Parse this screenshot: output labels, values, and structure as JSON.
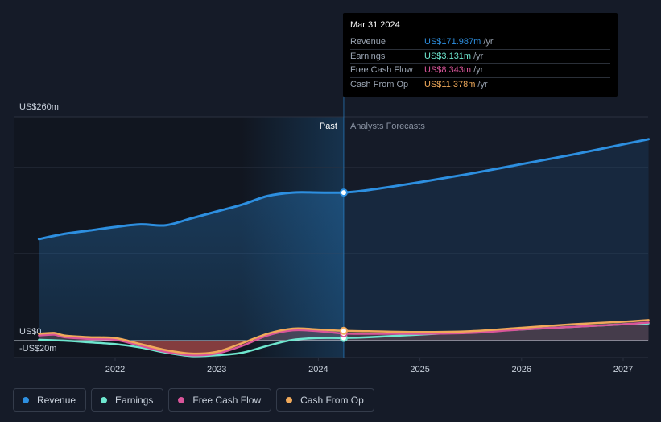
{
  "chart_data": {
    "type": "line",
    "y_top_label": "US$260m",
    "y_zero_label": "US$0",
    "y_bottom_label": "-US$20m",
    "ylim": [
      -20,
      260
    ],
    "x_ticks": [
      {
        "label": "2022",
        "x": 2022.0
      },
      {
        "label": "2023",
        "x": 2023.0
      },
      {
        "label": "2024",
        "x": 2024.0
      },
      {
        "label": "2025",
        "x": 2025.0
      },
      {
        "label": "2026",
        "x": 2026.0
      },
      {
        "label": "2027",
        "x": 2027.0
      }
    ],
    "past_label": "Past",
    "forecast_label": "Analysts Forecasts",
    "divider_x": 2024.25,
    "series": [
      {
        "name": "Revenue",
        "color": "#2d8fe0",
        "points": [
          [
            2021.25,
            118
          ],
          [
            2021.5,
            124
          ],
          [
            2021.75,
            128
          ],
          [
            2022.0,
            132
          ],
          [
            2022.25,
            135
          ],
          [
            2022.5,
            134
          ],
          [
            2022.75,
            142
          ],
          [
            2023.0,
            150
          ],
          [
            2023.25,
            158
          ],
          [
            2023.5,
            168
          ],
          [
            2023.75,
            172
          ],
          [
            2024.0,
            172
          ],
          [
            2024.25,
            172
          ],
          [
            2024.5,
            175
          ],
          [
            2025.0,
            184
          ],
          [
            2025.5,
            194
          ],
          [
            2026.0,
            205
          ],
          [
            2026.5,
            216
          ],
          [
            2027.0,
            228
          ],
          [
            2027.25,
            234
          ]
        ]
      },
      {
        "name": "Earnings",
        "color": "#6ee7cf",
        "points": [
          [
            2021.25,
            1
          ],
          [
            2021.5,
            0
          ],
          [
            2021.75,
            -2
          ],
          [
            2022.0,
            -4
          ],
          [
            2022.25,
            -8
          ],
          [
            2022.5,
            -14
          ],
          [
            2022.75,
            -18
          ],
          [
            2023.0,
            -17
          ],
          [
            2023.25,
            -14
          ],
          [
            2023.5,
            -6
          ],
          [
            2023.75,
            1
          ],
          [
            2024.0,
            3
          ],
          [
            2024.25,
            3.1
          ],
          [
            2024.5,
            4
          ],
          [
            2025.0,
            7
          ],
          [
            2025.5,
            10
          ],
          [
            2026.0,
            13
          ],
          [
            2026.5,
            16
          ],
          [
            2027.0,
            19
          ],
          [
            2027.25,
            20
          ]
        ]
      },
      {
        "name": "Free Cash Flow",
        "color": "#d9559a",
        "points": [
          [
            2021.25,
            6
          ],
          [
            2021.4,
            7
          ],
          [
            2021.5,
            4
          ],
          [
            2021.75,
            2
          ],
          [
            2022.0,
            1
          ],
          [
            2022.25,
            -6
          ],
          [
            2022.5,
            -13
          ],
          [
            2022.75,
            -17
          ],
          [
            2023.0,
            -15
          ],
          [
            2023.25,
            -6
          ],
          [
            2023.5,
            6
          ],
          [
            2023.75,
            12
          ],
          [
            2024.0,
            11
          ],
          [
            2024.25,
            8.3
          ],
          [
            2024.5,
            8
          ],
          [
            2025.0,
            8
          ],
          [
            2025.5,
            9
          ],
          [
            2026.0,
            13
          ],
          [
            2026.5,
            16
          ],
          [
            2027.0,
            19
          ],
          [
            2027.25,
            21
          ]
        ]
      },
      {
        "name": "Cash From Op",
        "color": "#f0a95a",
        "points": [
          [
            2021.25,
            8
          ],
          [
            2021.4,
            9
          ],
          [
            2021.5,
            6
          ],
          [
            2021.75,
            4
          ],
          [
            2022.0,
            3
          ],
          [
            2022.25,
            -4
          ],
          [
            2022.5,
            -11
          ],
          [
            2022.75,
            -15
          ],
          [
            2023.0,
            -13
          ],
          [
            2023.25,
            -3
          ],
          [
            2023.5,
            8
          ],
          [
            2023.75,
            14
          ],
          [
            2024.0,
            13
          ],
          [
            2024.25,
            11.4
          ],
          [
            2024.5,
            11
          ],
          [
            2025.0,
            10
          ],
          [
            2025.5,
            11
          ],
          [
            2026.0,
            15
          ],
          [
            2026.5,
            19
          ],
          [
            2027.0,
            22
          ],
          [
            2027.25,
            24
          ]
        ]
      }
    ]
  },
  "tooltip": {
    "date": "Mar 31 2024",
    "rows": [
      {
        "label": "Revenue",
        "value": "US$171.987m",
        "unit": "/yr",
        "color": "#2d8fe0"
      },
      {
        "label": "Earnings",
        "value": "US$3.131m",
        "unit": "/yr",
        "color": "#6ee7cf"
      },
      {
        "label": "Free Cash Flow",
        "value": "US$8.343m",
        "unit": "/yr",
        "color": "#d9559a"
      },
      {
        "label": "Cash From Op",
        "value": "US$11.378m",
        "unit": "/yr",
        "color": "#f0a95a"
      }
    ]
  },
  "legend": [
    {
      "label": "Revenue",
      "color": "#2d8fe0"
    },
    {
      "label": "Earnings",
      "color": "#6ee7cf"
    },
    {
      "label": "Free Cash Flow",
      "color": "#d9559a"
    },
    {
      "label": "Cash From Op",
      "color": "#f0a95a"
    }
  ]
}
